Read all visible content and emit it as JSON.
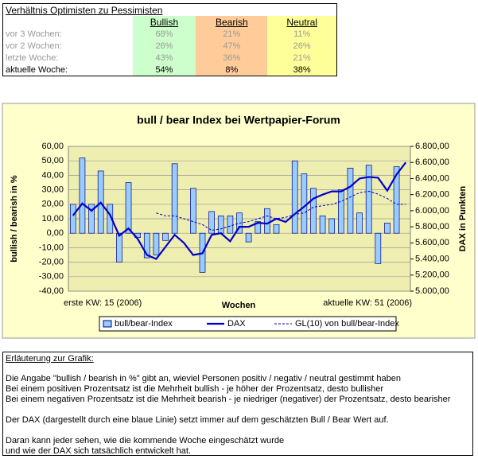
{
  "table": {
    "title": "Verhältnis Optimisten zu Pessimisten",
    "headers": [
      "Bullish",
      "Bearish",
      "Neutral"
    ],
    "rows": [
      [
        "vor 3 Wochen:",
        "68%",
        "21%",
        "11%"
      ],
      [
        "vor 2 Wochen:",
        "26%",
        "47%",
        "26%"
      ],
      [
        "letzte Woche:",
        "43%",
        "36%",
        "21%"
      ],
      [
        "aktuelle Woche:",
        "54%",
        "8%",
        "38%"
      ]
    ]
  },
  "chart_data": {
    "type": "bar",
    "title": "bull / bear Index bei Wertpapier-Forum",
    "y_label": "bullish / bearish in %",
    "y2_label": "DAX in Punkten",
    "x_label": "Wochen",
    "annotations": [
      "erste KW: 15 (2006)",
      "aktuelle KW: 51 (2006)"
    ],
    "ylim": [
      -40,
      60
    ],
    "yticks": [
      {
        "value": -40,
        "label": "-40,00"
      },
      {
        "value": -30,
        "label": "-30,00"
      },
      {
        "value": -20,
        "label": "-20,00"
      },
      {
        "value": -10,
        "label": "-10,00"
      },
      {
        "value": 0,
        "label": "0,00"
      },
      {
        "value": 10,
        "label": "10,00"
      },
      {
        "value": 20,
        "label": "20,00"
      },
      {
        "value": 30,
        "label": "30,00"
      },
      {
        "value": 40,
        "label": "40,00"
      },
      {
        "value": 50,
        "label": "50,00"
      },
      {
        "value": 60,
        "label": "60,00"
      }
    ],
    "y2lim": [
      5000,
      6800
    ],
    "y2ticks": [
      {
        "value": 5000,
        "label": "5.000,00"
      },
      {
        "value": 5200,
        "label": "5.200,00"
      },
      {
        "value": 5400,
        "label": "5.400,00"
      },
      {
        "value": 5600,
        "label": "5.600,00"
      },
      {
        "value": 5800,
        "label": "5.800,00"
      },
      {
        "value": 6000,
        "label": "6.000,00"
      },
      {
        "value": 6200,
        "label": "6.200,00"
      },
      {
        "value": 6400,
        "label": "6.400,00"
      },
      {
        "value": 6600,
        "label": "6.600,00"
      },
      {
        "value": 6800,
        "label": "6.800,00"
      }
    ],
    "grid": true,
    "series": [
      {
        "name": "bull/bear-Index",
        "type": "bar",
        "color": "#99ccff",
        "values": [
          20,
          52,
          20,
          43,
          20,
          -20,
          35,
          -3,
          -17,
          -15,
          -5,
          48,
          0,
          31,
          -27,
          15,
          12,
          12,
          14,
          -6,
          8,
          17,
          6,
          0,
          50,
          41,
          31,
          12,
          10,
          30,
          45,
          14,
          47,
          -21,
          7,
          46,
          0
        ]
      },
      {
        "name": "DAX",
        "type": "line",
        "axis": "y2",
        "color": "#0000cc",
        "values": [
          5940,
          6090,
          6000,
          6100,
          5950,
          5690,
          5780,
          5650,
          5450,
          5400,
          5550,
          5700,
          5600,
          5450,
          5470,
          5700,
          5720,
          5620,
          5800,
          5800,
          5850,
          5840,
          5900,
          5860,
          5960,
          6050,
          6150,
          6200,
          6240,
          6240,
          6300,
          6400,
          6420,
          6410,
          6250,
          6450,
          6600
        ]
      },
      {
        "name": "GL(10) von bull/bear-Index",
        "type": "line",
        "dashed": true,
        "color": "#0000cc",
        "values": [
          null,
          null,
          null,
          null,
          null,
          null,
          null,
          null,
          null,
          14,
          12,
          12,
          10,
          8,
          6,
          2,
          3,
          5,
          7,
          8,
          10,
          12,
          10,
          11,
          13,
          14,
          18,
          19,
          20,
          22,
          25,
          28,
          29,
          27,
          24,
          20,
          20
        ]
      }
    ]
  },
  "notes": {
    "title": "Erläuterung zur Grafik:",
    "paragraphs": [
      [
        "Die Angabe \"bullish / bearish in %\" gibt an, wieviel Personen positiv / negativ / neutral gestimmt haben",
        "Bei einem positiven Prozentsatz ist die Mehrheit bullish - je höher der Prozentsatz, desto bullisher",
        "Bei einem negativen Prozentsatz ist die Mehrheit bearish - je niedriger (negativer) der Prozentsatz, desto bearisher"
      ],
      [
        "Der DAX (dargestellt durch eine blaue Linie) setzt immer auf dem geschätzten Bull / Bear Wert auf."
      ],
      [
        "Daran kann jeder sehen, wie die kommende Woche eingeschätzt wurde",
        "und wie der DAX sich tatsächlich entwickelt hat."
      ]
    ]
  }
}
